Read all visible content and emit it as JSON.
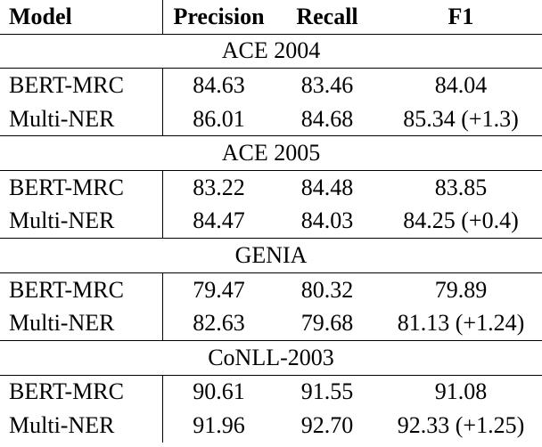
{
  "header": {
    "columns": [
      "Model",
      "Precision",
      "Recall",
      "F1"
    ]
  },
  "sections": [
    {
      "name": "ACE 2004",
      "rows": [
        [
          "BERT-MRC",
          "84.63",
          "83.46",
          "84.04"
        ],
        [
          "Multi-NER",
          "86.01",
          "84.68",
          "85.34 (+1.3)"
        ]
      ]
    },
    {
      "name": "ACE 2005",
      "rows": [
        [
          "BERT-MRC",
          "83.22",
          "84.48",
          "83.85"
        ],
        [
          "Multi-NER",
          "84.47",
          "84.03",
          "84.25 (+0.4)"
        ]
      ]
    },
    {
      "name": "GENIA",
      "rows": [
        [
          "BERT-MRC",
          "79.47",
          "80.32",
          "79.89"
        ],
        [
          "Multi-NER",
          "82.63",
          "79.68",
          "81.13 (+1.24)"
        ]
      ]
    },
    {
      "name": "CoNLL-2003",
      "rows": [
        [
          "BERT-MRC",
          "90.61",
          "91.55",
          "91.08"
        ],
        [
          "Multi-NER",
          "91.96",
          "92.70",
          "92.33 (+1.25)"
        ]
      ]
    }
  ]
}
